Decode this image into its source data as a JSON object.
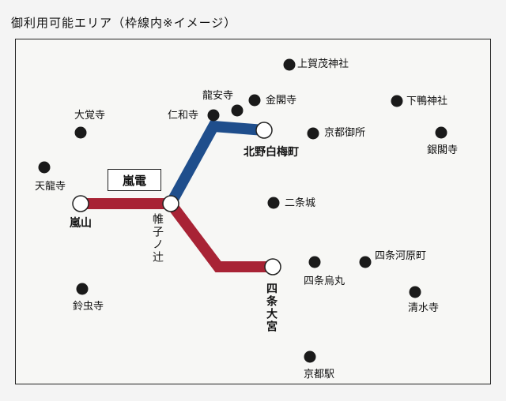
{
  "title": "御利用可能エリア（枠線内※イメージ）",
  "line_name": "嵐電",
  "colors": {
    "blue_line": "#1f4e8c",
    "red_line": "#a82335",
    "frame": "#222222"
  },
  "stations": {
    "kitano": "北野白梅町",
    "arashiyama": "嵐山",
    "katabiranotsuji": "帷子ノ辻",
    "shijo_omiya": "四条大宮"
  },
  "landmarks": {
    "kamigamo": "上賀茂神社",
    "ryoanji": "龍安寺",
    "kinkakuji": "金閣寺",
    "shimogamo": "下鴨神社",
    "daikakuji": "大覚寺",
    "ninnaji": "仁和寺",
    "gosho": "京都御所",
    "ginkakuji": "銀閣寺",
    "tenryuji": "天龍寺",
    "nijojo": "二条城",
    "shijo_kawaramachi": "四条河原町",
    "shijo_karasuma": "四条烏丸",
    "suzumushi": "鈴虫寺",
    "kiyomizu": "清水寺",
    "kyoto_station": "京都駅"
  }
}
